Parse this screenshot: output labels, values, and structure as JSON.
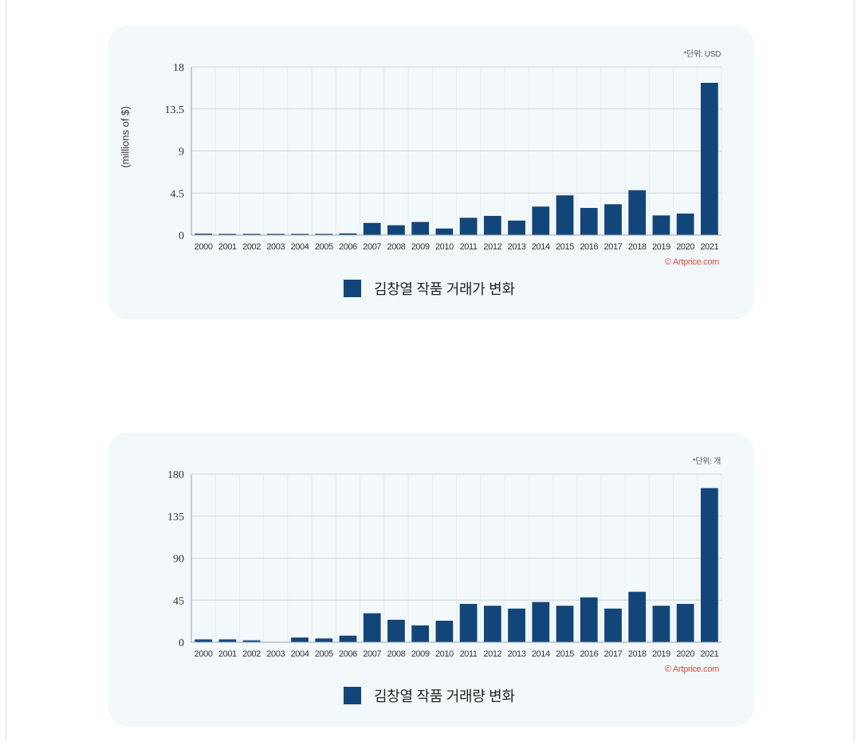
{
  "charts": [
    {
      "unit_note": "*단위: USD",
      "source": "© Artprice.com",
      "legend": "김창열 작품 거래가 변화"
    },
    {
      "unit_note": "*단위: 개",
      "source": "© Artprice.com",
      "legend": "김창열 작품 거래량 변화"
    }
  ],
  "chart_data": [
    {
      "type": "bar",
      "title": "",
      "xlabel": "",
      "ylabel": "(millions of $)",
      "categories": [
        "2000",
        "2001",
        "2002",
        "2003",
        "2004",
        "2005",
        "2006",
        "2007",
        "2008",
        "2009",
        "2010",
        "2011",
        "2012",
        "2013",
        "2014",
        "2015",
        "2016",
        "2017",
        "2018",
        "2019",
        "2020",
        "2021"
      ],
      "series": [
        {
          "name": "김창열 작품 거래가 변화",
          "values": [
            0.15,
            0.03,
            0.02,
            0.03,
            0.08,
            0.12,
            0.18,
            1.3,
            1.05,
            1.4,
            0.7,
            1.85,
            2.05,
            1.55,
            3.05,
            4.25,
            2.9,
            3.3,
            4.8,
            2.1,
            2.3,
            16.3
          ]
        }
      ],
      "ylim": [
        0,
        18
      ],
      "yticks": [
        "0",
        "4.5",
        "9",
        "13.5",
        "18"
      ],
      "grid": true,
      "legend": "bottom-center",
      "color": "#12467a"
    },
    {
      "type": "bar",
      "title": "",
      "xlabel": "",
      "ylabel": "",
      "categories": [
        "2000",
        "2001",
        "2002",
        "2003",
        "2004",
        "2005",
        "2006",
        "2007",
        "2008",
        "2009",
        "2010",
        "2011",
        "2012",
        "2013",
        "2014",
        "2015",
        "2016",
        "2017",
        "2018",
        "2019",
        "2020",
        "2021"
      ],
      "series": [
        {
          "name": "김창열 작품 거래량 변화",
          "values": [
            3,
            3,
            2,
            0,
            5,
            4,
            7,
            31,
            24,
            18,
            23,
            41,
            39,
            36,
            43,
            39,
            48,
            36,
            54,
            39,
            41,
            165
          ]
        }
      ],
      "ylim": [
        0,
        180
      ],
      "yticks": [
        "0",
        "45",
        "90",
        "135",
        "180"
      ],
      "grid": true,
      "legend": "bottom-center",
      "color": "#12467a"
    }
  ]
}
